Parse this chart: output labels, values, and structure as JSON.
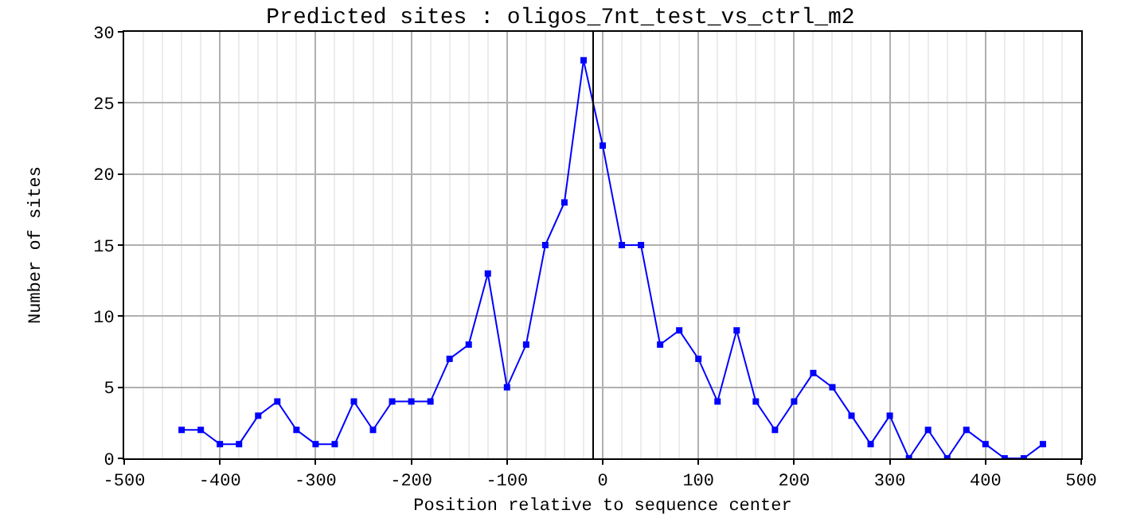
{
  "chart_data": {
    "type": "line",
    "title": "Predicted sites : oligos_7nt_test_vs_ctrl_m2",
    "xlabel": "Position relative to sequence center",
    "ylabel": "Number of sites",
    "x": [
      -440,
      -420,
      -400,
      -380,
      -360,
      -340,
      -320,
      -300,
      -280,
      -260,
      -240,
      -220,
      -200,
      -180,
      -160,
      -140,
      -120,
      -100,
      -80,
      -60,
      -40,
      -20,
      0,
      20,
      40,
      60,
      80,
      100,
      120,
      140,
      160,
      180,
      200,
      220,
      240,
      260,
      280,
      300,
      320,
      340,
      360,
      380,
      400,
      420,
      440,
      460
    ],
    "series": [
      {
        "color": "#0000ff",
        "values": [
          2,
          2,
          1,
          1,
          3,
          4,
          2,
          1,
          1,
          4,
          2,
          4,
          4,
          4,
          7,
          8,
          13,
          5,
          8,
          15,
          18,
          28,
          22,
          15,
          15,
          8,
          9,
          7,
          4,
          9,
          4,
          2,
          4,
          6,
          5,
          3,
          1,
          3,
          0,
          2,
          0,
          2,
          1,
          0,
          0,
          1
        ]
      }
    ],
    "xlim": [
      -500,
      500
    ],
    "ylim": [
      0,
      30
    ],
    "xticks": [
      -500,
      {
        "value": -480,
        "label": null
      },
      {
        "value": -460,
        "label": null
      },
      {
        "value": -440,
        "label": null
      },
      {
        "value": -420,
        "label": null
      },
      -400,
      {
        "value": -380,
        "label": null
      },
      {
        "value": -360,
        "label": null
      },
      {
        "value": -340,
        "label": null
      },
      {
        "value": -320,
        "label": null
      },
      -300,
      {
        "value": -280,
        "label": null
      },
      {
        "value": -260,
        "label": null
      },
      {
        "value": -240,
        "label": null
      },
      {
        "value": -220,
        "label": null
      },
      -200,
      {
        "value": -180,
        "label": null
      },
      {
        "value": -160,
        "label": null
      },
      {
        "value": -140,
        "label": null
      },
      {
        "value": -120,
        "label": null
      },
      -100,
      {
        "value": -80,
        "label": null
      },
      {
        "value": -60,
        "label": null
      },
      {
        "value": -40,
        "label": null
      },
      {
        "value": -20,
        "label": null
      },
      0,
      {
        "value": 20,
        "label": null
      },
      {
        "value": 40,
        "label": null
      },
      {
        "value": 60,
        "label": null
      },
      {
        "value": 80,
        "label": null
      },
      100,
      {
        "value": 120,
        "label": null
      },
      {
        "value": 140,
        "label": null
      },
      {
        "value": 160,
        "label": null
      },
      {
        "value": 180,
        "label": null
      },
      200,
      {
        "value": 220,
        "label": null
      },
      {
        "value": 240,
        "label": null
      },
      {
        "value": 260,
        "label": null
      },
      {
        "value": 280,
        "label": null
      },
      300,
      {
        "value": 320,
        "label": null
      },
      {
        "value": 340,
        "label": null
      },
      {
        "value": 360,
        "label": null
      },
      {
        "value": 380,
        "label": null
      },
      400,
      {
        "value": 420,
        "label": null
      },
      {
        "value": 440,
        "label": null
      },
      {
        "value": 460,
        "label": null
      },
      {
        "value": 480,
        "label": null
      },
      500
    ],
    "yticks": [
      0,
      5,
      10,
      15,
      20,
      25,
      30
    ],
    "ref_lines": [
      {
        "axis": "x",
        "value": -10,
        "color": "#000000"
      }
    ],
    "grid": true,
    "marker": "square",
    "line_style": "solid"
  }
}
